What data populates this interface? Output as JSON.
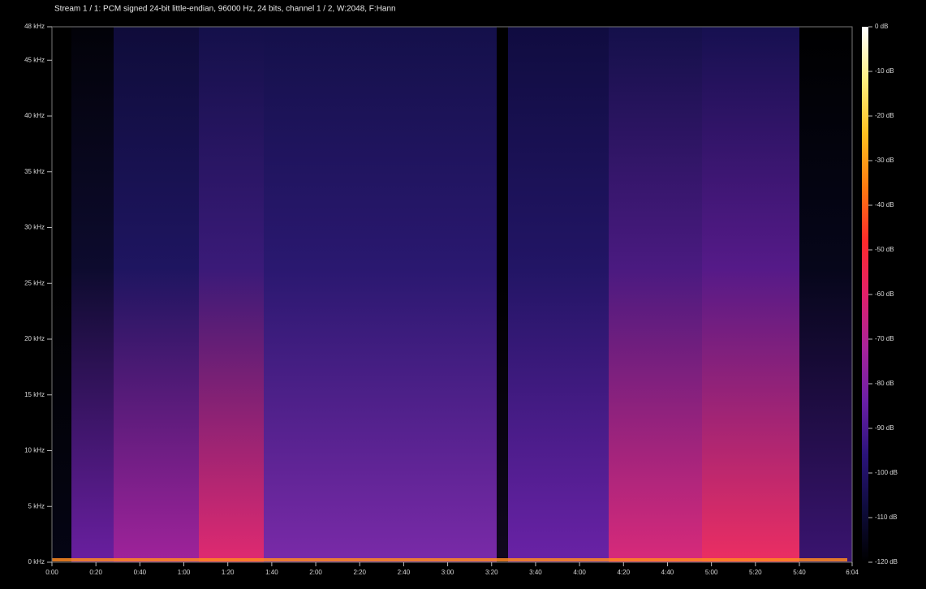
{
  "chart_data": {
    "type": "spectrogram",
    "title": "Stream 1 / 1: PCM signed 24-bit little-endian, 96000 Hz, 24 bits, channel 1 / 2, W:2048, F:Hann",
    "xlim": [
      0,
      364
    ],
    "xticks": [
      {
        "value": 0,
        "label": "0:00"
      },
      {
        "value": 20,
        "label": "0:20"
      },
      {
        "value": 40,
        "label": "0:40"
      },
      {
        "value": 60,
        "label": "1:00"
      },
      {
        "value": 80,
        "label": "1:20"
      },
      {
        "value": 100,
        "label": "1:40"
      },
      {
        "value": 120,
        "label": "2:00"
      },
      {
        "value": 140,
        "label": "2:20"
      },
      {
        "value": 160,
        "label": "2:40"
      },
      {
        "value": 180,
        "label": "3:00"
      },
      {
        "value": 200,
        "label": "3:20"
      },
      {
        "value": 220,
        "label": "3:40"
      },
      {
        "value": 240,
        "label": "4:00"
      },
      {
        "value": 260,
        "label": "4:20"
      },
      {
        "value": 280,
        "label": "4:40"
      },
      {
        "value": 300,
        "label": "5:00"
      },
      {
        "value": 320,
        "label": "5:20"
      },
      {
        "value": 340,
        "label": "5:40"
      },
      {
        "value": 364,
        "label": "6:04"
      }
    ],
    "ylim": [
      0,
      48
    ],
    "yticks": [
      {
        "value": 0,
        "label": "0 kHz"
      },
      {
        "value": 5,
        "label": "5 kHz"
      },
      {
        "value": 10,
        "label": "10 kHz"
      },
      {
        "value": 15,
        "label": "15 kHz"
      },
      {
        "value": 20,
        "label": "20 kHz"
      },
      {
        "value": 25,
        "label": "25 kHz"
      },
      {
        "value": 30,
        "label": "30 kHz"
      },
      {
        "value": 35,
        "label": "35 kHz"
      },
      {
        "value": 40,
        "label": "40 kHz"
      },
      {
        "value": 45,
        "label": "45 kHz"
      },
      {
        "value": 48,
        "label": "48 kHz"
      }
    ],
    "colorbar": {
      "lim": [
        -120,
        0
      ],
      "colormap": [
        "#000000",
        "#0e0c3c",
        "#2a137a",
        "#6a1fa6",
        "#a8239a",
        "#e0206a",
        "#ff2a2a",
        "#ff7a10",
        "#ffc020",
        "#fff080",
        "#ffffff"
      ],
      "ticks": [
        {
          "value": 0,
          "label": "0 dB"
        },
        {
          "value": -10,
          "label": "-10 dB"
        },
        {
          "value": -20,
          "label": "-20 dB"
        },
        {
          "value": -30,
          "label": "-30 dB"
        },
        {
          "value": -40,
          "label": "-40 dB"
        },
        {
          "value": -50,
          "label": "-50 dB"
        },
        {
          "value": -60,
          "label": "-60 dB"
        },
        {
          "value": -70,
          "label": "-70 dB"
        },
        {
          "value": -80,
          "label": "-80 dB"
        },
        {
          "value": -90,
          "label": "-90 dB"
        },
        {
          "value": -100,
          "label": "-100 dB"
        },
        {
          "value": -110,
          "label": "-110 dB"
        },
        {
          "value": -120,
          "label": "-120 dB"
        }
      ]
    }
  }
}
